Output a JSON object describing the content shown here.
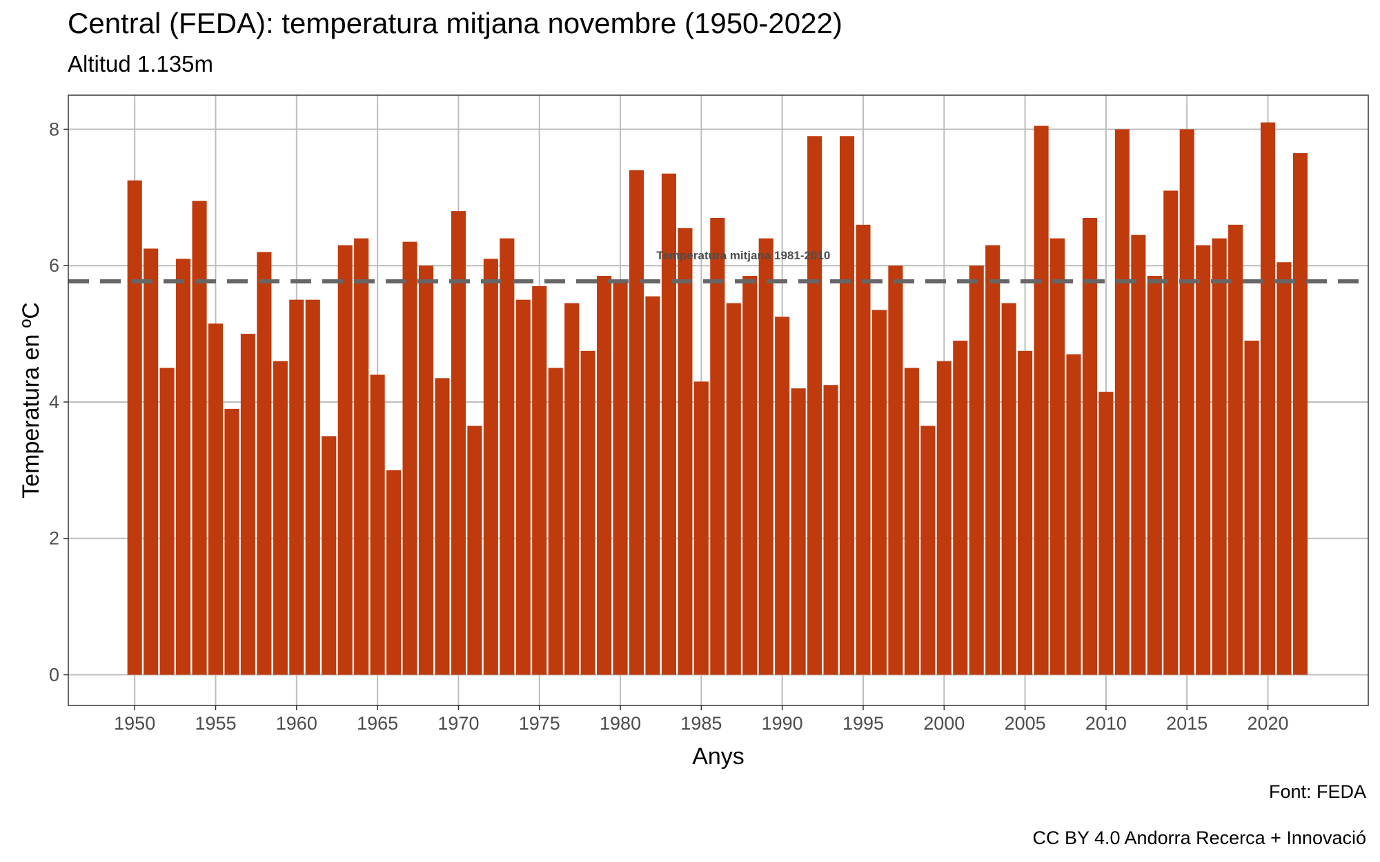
{
  "chart_data": {
    "type": "bar",
    "title": "Central (FEDA): temperatura mitjana  novembre (1950-2022)",
    "subtitle": "Altitud 1.135m",
    "xlabel": "Anys",
    "ylabel": "Temperatura en ºC",
    "captions": [
      "Font: FEDA",
      "CC BY 4.0 Andorra Recerca + Innovació"
    ],
    "bar_color": "#BF3A0C",
    "reference_line": {
      "value": 5.77,
      "label": "Temperatura mitjana 1981-2010",
      "color": "#666666",
      "style": "dashed"
    },
    "xlim": [
      1945.9,
      2026.2
    ],
    "ylim": [
      -0.45,
      8.5
    ],
    "x_ticks": [
      1950,
      1955,
      1960,
      1965,
      1970,
      1975,
      1980,
      1985,
      1990,
      1995,
      2000,
      2005,
      2010,
      2015,
      2020
    ],
    "y_ticks": [
      0,
      2,
      4,
      6,
      8
    ],
    "grid": true,
    "x": [
      1950,
      1951,
      1952,
      1953,
      1954,
      1955,
      1956,
      1957,
      1958,
      1959,
      1960,
      1961,
      1962,
      1963,
      1964,
      1965,
      1966,
      1967,
      1968,
      1969,
      1970,
      1971,
      1972,
      1973,
      1974,
      1975,
      1976,
      1977,
      1978,
      1979,
      1980,
      1981,
      1982,
      1983,
      1984,
      1985,
      1986,
      1987,
      1988,
      1989,
      1990,
      1991,
      1992,
      1993,
      1994,
      1995,
      1996,
      1997,
      1998,
      1999,
      2000,
      2001,
      2002,
      2003,
      2004,
      2005,
      2006,
      2007,
      2008,
      2009,
      2010,
      2011,
      2012,
      2013,
      2014,
      2015,
      2016,
      2017,
      2018,
      2019,
      2020,
      2021,
      2022
    ],
    "values": [
      7.25,
      6.25,
      4.5,
      6.1,
      6.95,
      5.15,
      3.9,
      5.0,
      6.2,
      4.6,
      5.5,
      5.5,
      3.5,
      6.3,
      6.4,
      4.4,
      3.0,
      6.35,
      6.0,
      4.35,
      6.8,
      3.65,
      6.1,
      6.4,
      5.5,
      5.7,
      4.5,
      5.45,
      4.75,
      5.85,
      5.8,
      7.4,
      5.55,
      7.35,
      6.55,
      4.3,
      6.7,
      5.45,
      5.85,
      6.4,
      5.25,
      4.2,
      7.9,
      4.25,
      7.9,
      6.6,
      5.35,
      6.0,
      4.5,
      3.65,
      4.6,
      4.9,
      6.0,
      6.3,
      5.45,
      4.75,
      8.05,
      6.4,
      4.7,
      6.7,
      4.15,
      8.0,
      6.45,
      5.85,
      7.1,
      8.0,
      6.3,
      6.4,
      6.6,
      4.9,
      8.1,
      6.05,
      7.65
    ]
  }
}
